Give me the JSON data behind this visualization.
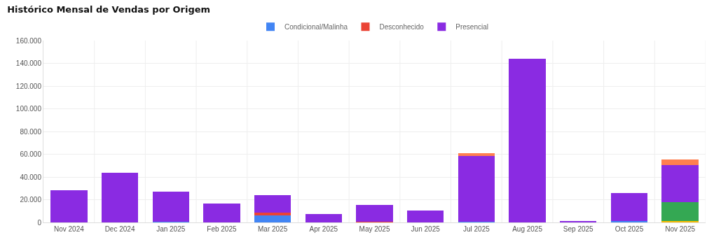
{
  "chart_data": {
    "type": "bar",
    "title": "Histórico Mensal de Vendas por Origem",
    "stacked": true,
    "legend": "top",
    "grid": true,
    "categories": [
      "Nov 2024",
      "Dec 2024",
      "Jan 2025",
      "Feb 2025",
      "Mar 2025",
      "Apr 2025",
      "May 2025",
      "Jun 2025",
      "Jul 2025",
      "Aug 2025",
      "Sep 2025",
      "Oct 2025",
      "Nov 2025"
    ],
    "ylim": [
      0,
      160000
    ],
    "yticks": [
      {
        "value": 0,
        "label": "0"
      },
      {
        "value": 20000,
        "label": "20.000"
      },
      {
        "value": 40000,
        "label": "40.000"
      },
      {
        "value": 60000,
        "label": "60.000"
      },
      {
        "value": 80000,
        "label": "80.000"
      },
      {
        "value": 100000,
        "label": "100.000"
      },
      {
        "value": 120000,
        "label": "120.000"
      },
      {
        "value": 140000,
        "label": "140.000"
      },
      {
        "value": 160000,
        "label": "160.000"
      }
    ],
    "series": [
      {
        "name": "Condicional/Malinha",
        "color": "#4285f4",
        "values": [
          0,
          0,
          600,
          0,
          6300,
          0,
          0,
          0,
          600,
          0,
          0,
          1200,
          0
        ]
      },
      {
        "name": "Desconhecido",
        "color": "#ea4335",
        "values": [
          0,
          0,
          0,
          0,
          2500,
          0,
          500,
          0,
          0,
          0,
          0,
          0,
          0
        ]
      },
      {
        "color": "#fbbc04",
        "values": [
          0,
          0,
          0,
          0,
          0,
          0,
          0,
          0,
          0,
          0,
          0,
          0,
          1300
        ]
      },
      {
        "color": "#34a853",
        "values": [
          0,
          0,
          0,
          0,
          0,
          0,
          0,
          0,
          0,
          0,
          0,
          0,
          16500
        ]
      },
      {
        "name": "Presencial",
        "color": "#8a2be2",
        "values": [
          28600,
          43500,
          26400,
          16700,
          15300,
          7500,
          14800,
          10700,
          57800,
          143700,
          1300,
          24500,
          32600
        ]
      },
      {
        "color": "#ff7f50",
        "values": [
          0,
          0,
          0,
          0,
          0,
          0,
          0,
          0,
          2700,
          0,
          0,
          0,
          5000
        ]
      }
    ]
  }
}
